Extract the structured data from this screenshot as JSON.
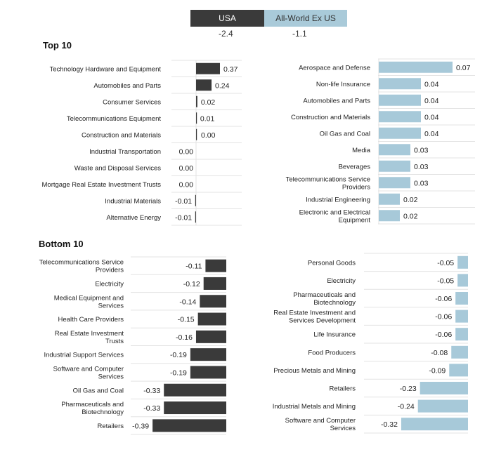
{
  "legend": {
    "usa": {
      "label": "USA",
      "value": "-2.4"
    },
    "world": {
      "label": "All-World Ex US",
      "value": "-1.1"
    }
  },
  "colors": {
    "usa": "#3a3a3a",
    "world": "#a7c9d9",
    "divider": "#e3e3e3"
  },
  "sections": {
    "top": "Top 10",
    "bottom": "Bottom 10"
  },
  "chart_data": [
    {
      "type": "bar",
      "categories": [
        "Technology Hardware and Equipment",
        "Automobiles and Parts",
        "Consumer Services",
        "Telecommunications Equipment",
        "Construction and Materials",
        "Industrial Transportation",
        "Waste and Disposal Services",
        "Mortgage Real Estate Investment Trusts",
        "Industrial Materials",
        "Alternative Energy"
      ],
      "values": [
        0.37,
        0.24,
        0.02,
        0.01,
        0.0,
        0.0,
        0.0,
        0.0,
        -0.01,
        -0.01
      ],
      "labels": [
        "0.37",
        "0.24",
        "0.02",
        "0.01",
        "0.00",
        "0.00",
        "0.00",
        "0.00",
        "-0.01",
        "-0.01"
      ],
      "series": "USA"
    },
    {
      "type": "bar",
      "categories": [
        "Aerospace and Defense",
        "Non-life Insurance",
        "Automobiles and Parts",
        "Construction and Materials",
        "Oil Gas and Coal",
        "Media",
        "Beverages",
        "Telecommunications Service Providers",
        "Industrial Engineering",
        "Electronic and Electrical Equipment"
      ],
      "values": [
        0.07,
        0.04,
        0.04,
        0.04,
        0.04,
        0.03,
        0.03,
        0.03,
        0.02,
        0.02
      ],
      "labels": [
        "0.07",
        "0.04",
        "0.04",
        "0.04",
        "0.04",
        "0.03",
        "0.03",
        "0.03",
        "0.02",
        "0.02"
      ],
      "series": "All-World Ex US"
    },
    {
      "type": "bar",
      "categories": [
        "Telecommunications Service Providers",
        "Electricity",
        "Medical Equipment and Services",
        "Health Care Providers",
        "Real Estate Investment Trusts",
        "Industrial Support Services",
        "Software and Computer Services",
        "Oil Gas and Coal",
        "Pharmaceuticals and Biotechnology",
        "Retailers"
      ],
      "values": [
        -0.11,
        -0.12,
        -0.14,
        -0.15,
        -0.16,
        -0.19,
        -0.19,
        -0.33,
        -0.33,
        -0.39
      ],
      "labels": [
        "-0.11",
        "-0.12",
        "-0.14",
        "-0.15",
        "-0.16",
        "-0.19",
        "-0.19",
        "-0.33",
        "-0.33",
        "-0.39"
      ],
      "series": "USA"
    },
    {
      "type": "bar",
      "categories": [
        "Personal Goods",
        "Electricity",
        "Pharmaceuticals and Biotechnology",
        "Real Estate Investment and Services Development",
        "Life Insurance",
        "Food Producers",
        "Precious Metals and Mining",
        "Retailers",
        "Industrial Metals and Mining",
        "Software and Computer Services"
      ],
      "values": [
        -0.05,
        -0.05,
        -0.06,
        -0.06,
        -0.06,
        -0.08,
        -0.09,
        -0.23,
        -0.24,
        -0.32
      ],
      "labels": [
        "-0.05",
        "-0.05",
        "-0.06",
        "-0.06",
        "-0.06",
        "-0.08",
        "-0.09",
        "-0.23",
        "-0.24",
        "-0.32"
      ],
      "series": "All-World Ex US"
    }
  ]
}
